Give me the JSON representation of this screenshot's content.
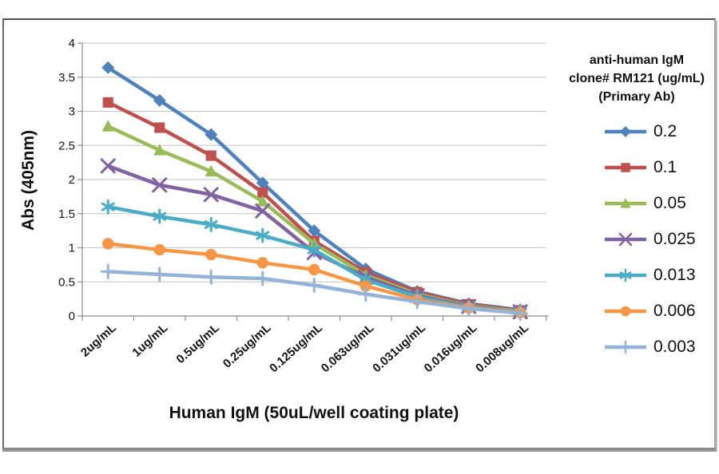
{
  "chart_data": {
    "type": "line",
    "title": "",
    "xlabel": "Human IgM (50uL/well coating plate)",
    "ylabel": "Abs (405nm)",
    "ylim": [
      0,
      4
    ],
    "ytick_labels": [
      "0",
      "0.5",
      "1",
      "1.5",
      "2",
      "2.5",
      "3",
      "3.5",
      "4"
    ],
    "grid": true,
    "grid_color": "#c3c3c3",
    "axis_color": "#8c8c8c",
    "text_color": "#151515",
    "legend_position": "right",
    "legend_title": [
      "anti-human IgM",
      "clone# RM121 (ug/mL)",
      "(Primary Ab)"
    ],
    "categories": [
      "2ug/mL",
      "1ug/mL",
      "0.5ug/mL",
      "0.25ug/mL",
      "0.125ug/mL",
      "0.063ug/mL",
      "0.031ug/mL",
      "0.016ug/mL",
      "0.008ug/mL"
    ],
    "series": [
      {
        "name": "0.2",
        "color": "#4F81BD",
        "marker": "diamond",
        "values": [
          3.64,
          3.16,
          2.66,
          1.95,
          1.25,
          0.69,
          0.36,
          0.18,
          0.09
        ]
      },
      {
        "name": "0.1",
        "color": "#C0504D",
        "marker": "square",
        "values": [
          3.13,
          2.76,
          2.35,
          1.81,
          1.1,
          0.64,
          0.35,
          0.17,
          0.08
        ]
      },
      {
        "name": "0.05",
        "color": "#9BBB59",
        "marker": "triangle",
        "values": [
          2.78,
          2.43,
          2.12,
          1.68,
          1.06,
          0.6,
          0.32,
          0.15,
          0.07
        ]
      },
      {
        "name": "0.025",
        "color": "#8064A2",
        "marker": "x",
        "values": [
          2.2,
          1.92,
          1.78,
          1.54,
          0.93,
          0.57,
          0.3,
          0.14,
          0.06
        ]
      },
      {
        "name": "0.013",
        "color": "#4BACC6",
        "marker": "asterisk",
        "values": [
          1.6,
          1.46,
          1.34,
          1.18,
          0.97,
          0.53,
          0.28,
          0.13,
          0.06
        ]
      },
      {
        "name": "0.006",
        "color": "#F79646",
        "marker": "circle",
        "values": [
          1.06,
          0.97,
          0.9,
          0.78,
          0.68,
          0.44,
          0.24,
          0.12,
          0.05
        ]
      },
      {
        "name": "0.003",
        "color": "#95B3D7",
        "marker": "plus",
        "values": [
          0.65,
          0.61,
          0.57,
          0.55,
          0.45,
          0.32,
          0.21,
          0.11,
          0.04
        ]
      }
    ]
  }
}
